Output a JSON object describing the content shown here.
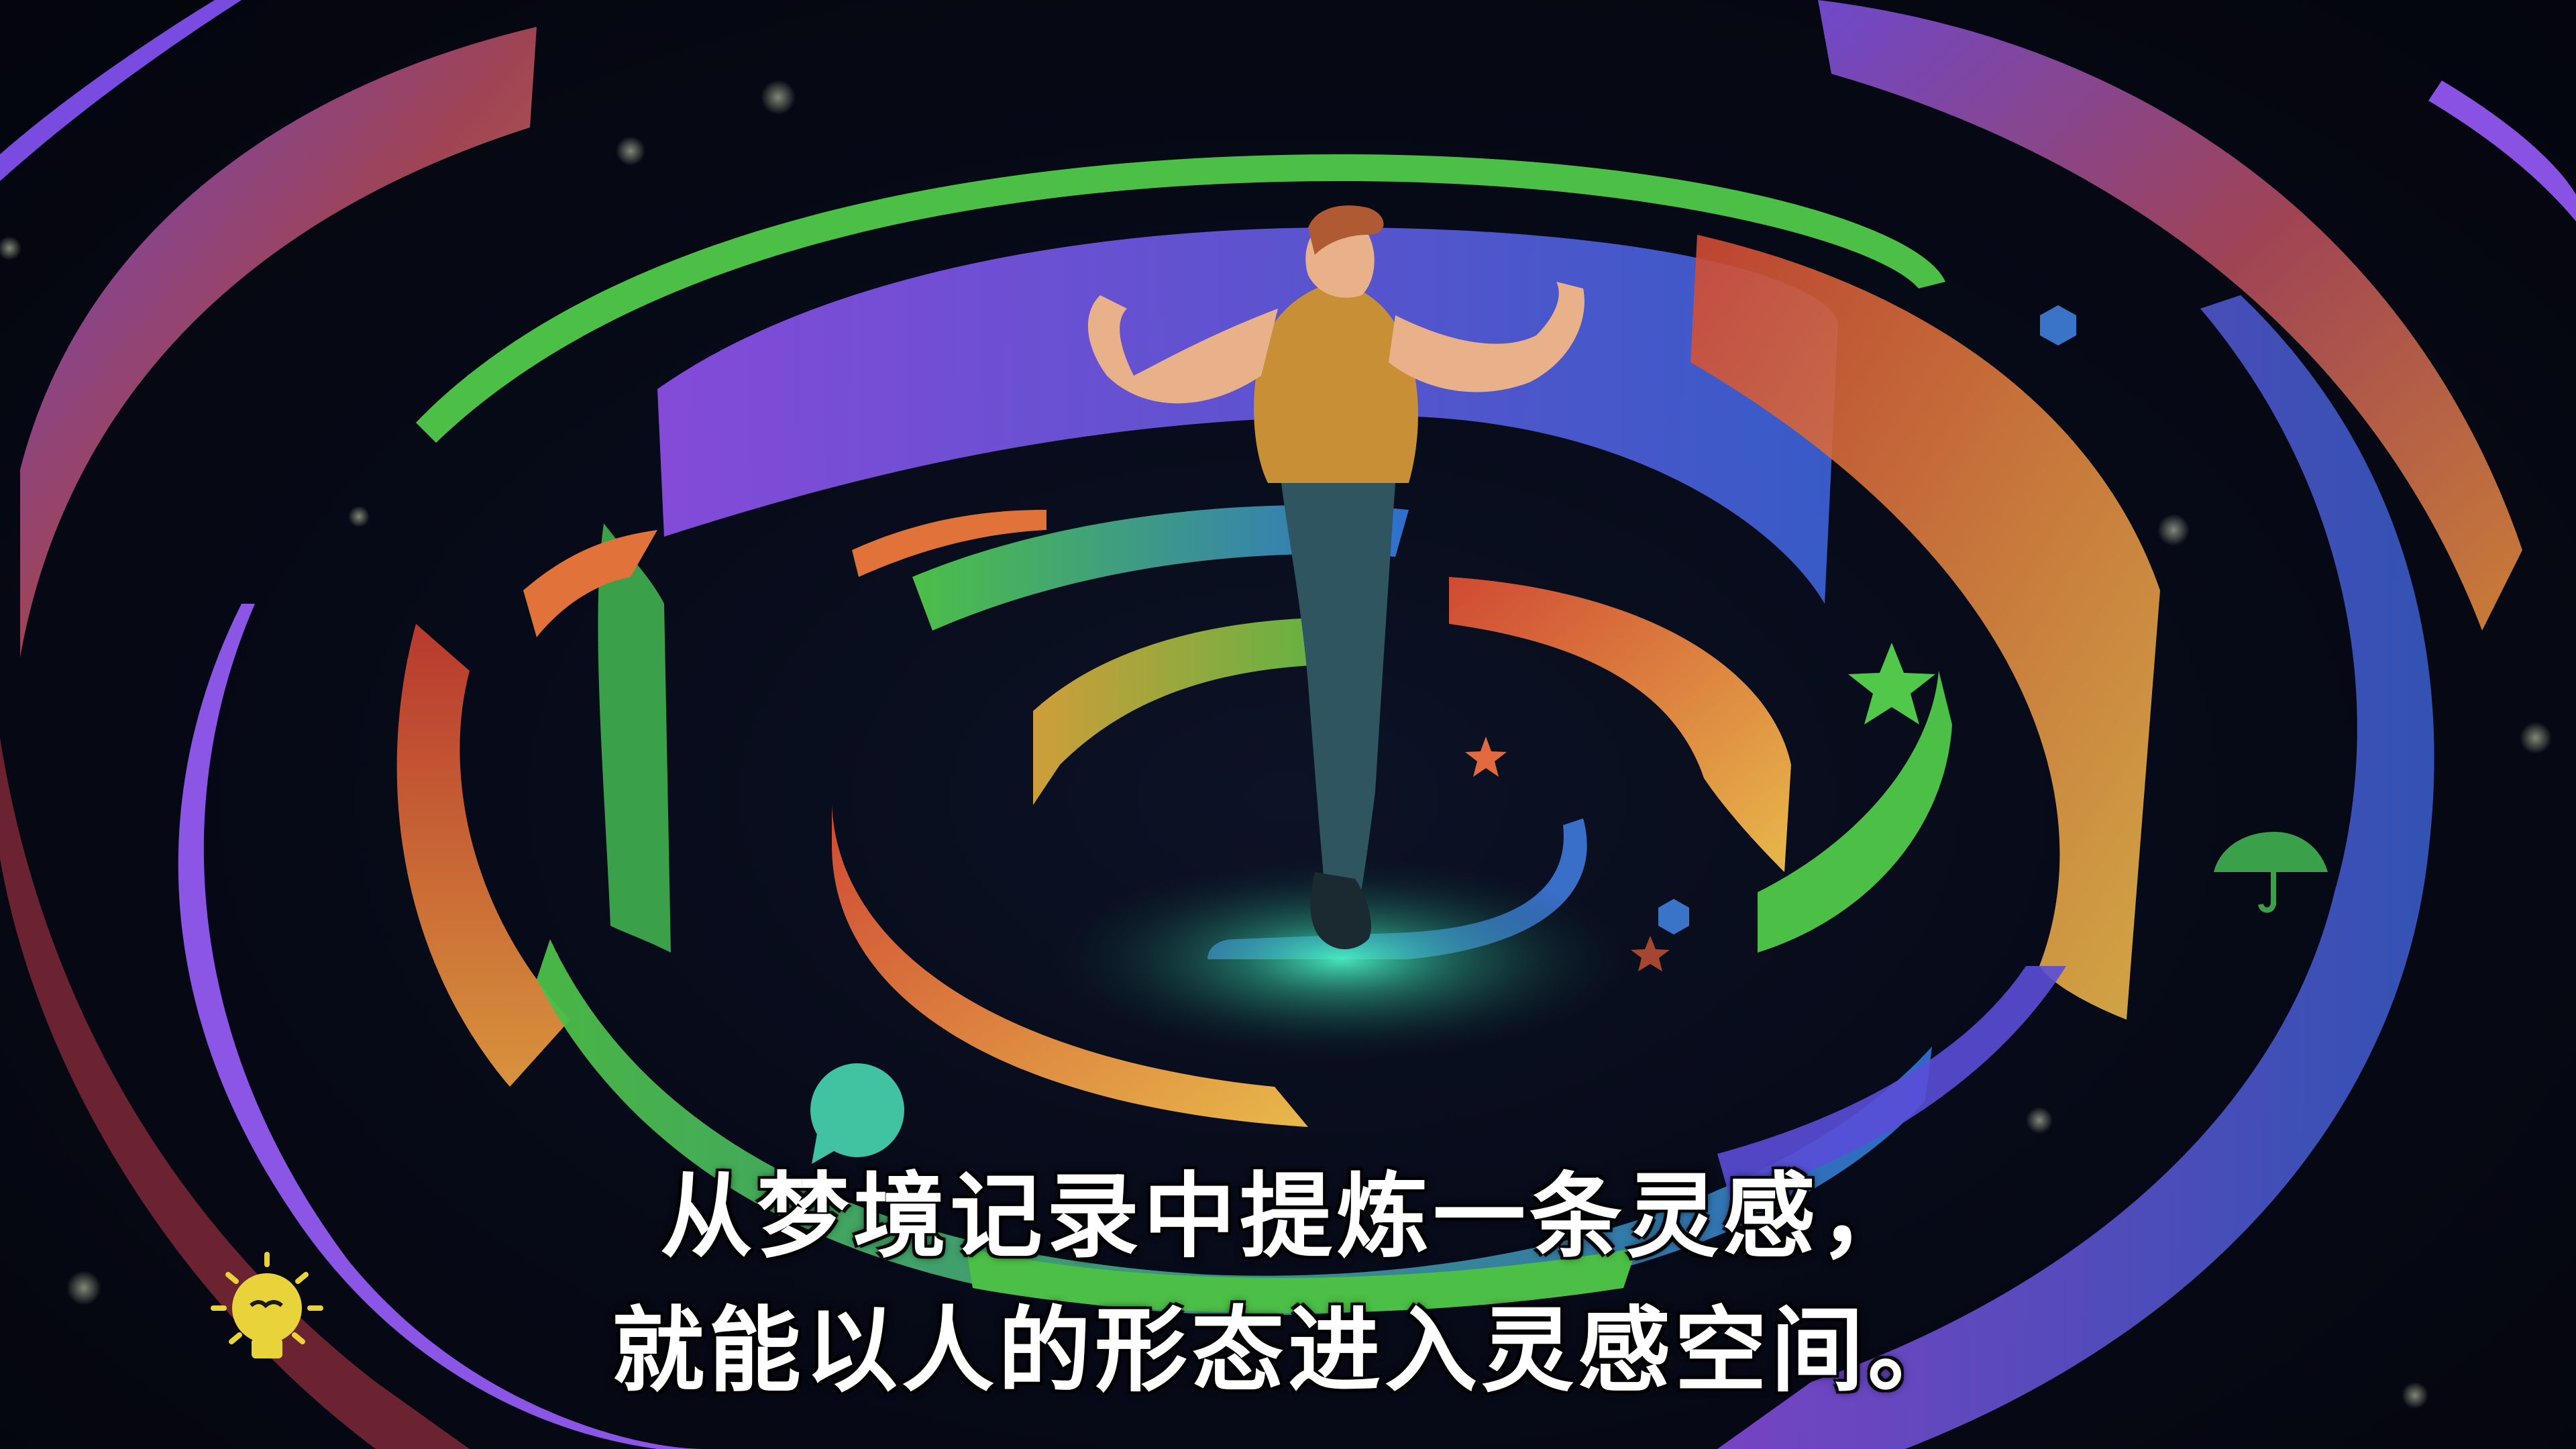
{
  "subtitle": {
    "line1": "从梦境记录中提炼一条灵感，",
    "line2": "就能以人的形态进入灵感空间。"
  },
  "colors": {
    "background": "#05060e",
    "ring_purple": "#7b4ee0",
    "ring_green": "#4cbf47",
    "ring_orange": "#e0723a",
    "ring_yellow": "#d9a83a",
    "ring_blue": "#3a74c9",
    "ring_red": "#c84432",
    "shirt": "#c98f36",
    "pants": "#2f5560",
    "glow": "#3fe0b4",
    "subtitle_text": "#ffffff"
  },
  "icons": [
    "lightbulb-icon",
    "umbrella-icon",
    "speech-bubble-icon",
    "star-icon",
    "hexagon-icon"
  ]
}
